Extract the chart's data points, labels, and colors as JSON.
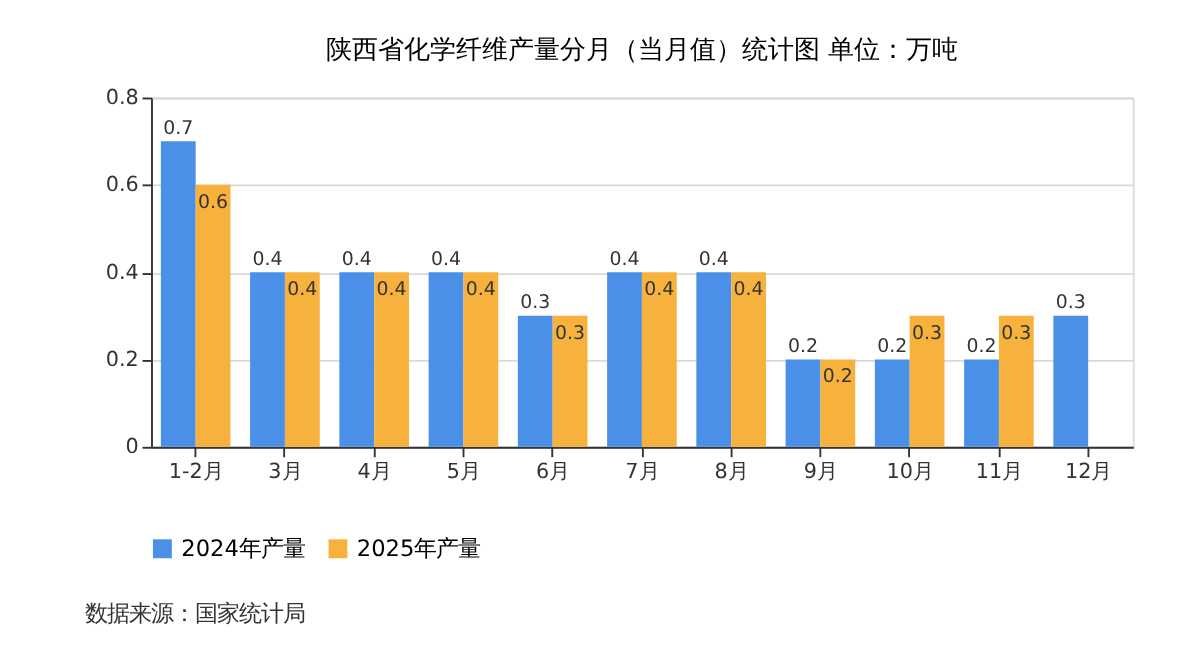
{
  "chart_data": {
    "type": "bar",
    "title": "陕西省化学纤维产量分月（当月值）统计图 单位：万吨",
    "categories": [
      "1-2月",
      "3月",
      "4月",
      "5月",
      "6月",
      "7月",
      "8月",
      "9月",
      "10月",
      "11月",
      "12月"
    ],
    "series": [
      {
        "name": "2024年产量",
        "color": "#4a8fe8",
        "values": [
          0.7,
          0.4,
          0.4,
          0.4,
          0.3,
          0.4,
          0.4,
          0.2,
          0.2,
          0.2,
          0.3
        ]
      },
      {
        "name": "2025年产量",
        "color": "#f6b23c",
        "values": [
          0.6,
          0.4,
          0.4,
          0.4,
          0.3,
          0.4,
          0.4,
          0.2,
          0.3,
          0.3,
          null
        ]
      }
    ],
    "ylim": [
      0,
      0.8
    ],
    "yticks": [
      0,
      0.2,
      0.4,
      0.6,
      0.8
    ],
    "grid": "y",
    "legend": "bottom",
    "data_labels": true,
    "annotations": [
      "数据来源：国家统计局"
    ]
  }
}
